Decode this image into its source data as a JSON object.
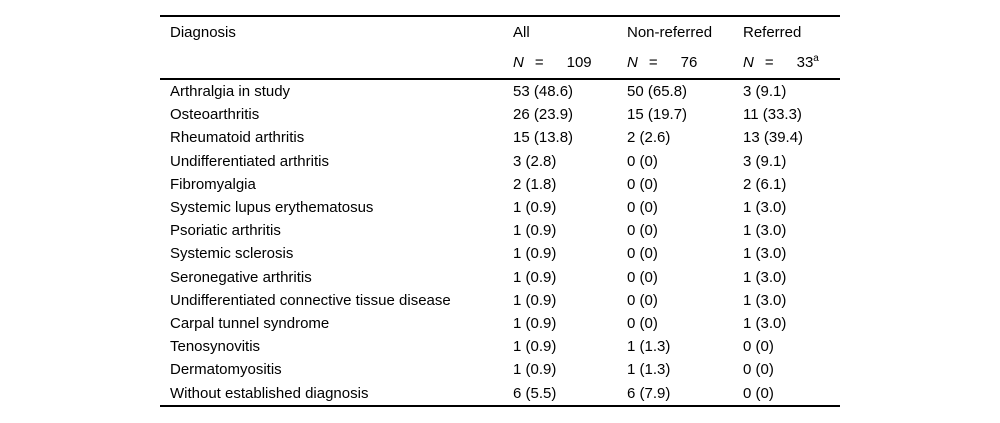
{
  "table": {
    "colors": {
      "text": "#000000",
      "background": "#ffffff",
      "rule": "#000000"
    },
    "columns": [
      {
        "label": "Diagnosis"
      },
      {
        "label": "All",
        "n": "N",
        "eq": "=",
        "count": "109",
        "sup": ""
      },
      {
        "label": "Non-referred",
        "n": "N",
        "eq": "=",
        "count": "76",
        "sup": ""
      },
      {
        "label": "Referred",
        "n": "N",
        "eq": "=",
        "count": "33",
        "sup": "a"
      }
    ],
    "rows": [
      {
        "diagnosis": "Arthralgia in study",
        "all": "53 (48.6)",
        "non_referred": "50 (65.8)",
        "referred": "3 (9.1)"
      },
      {
        "diagnosis": "Osteoarthritis",
        "all": "26 (23.9)",
        "non_referred": "15 (19.7)",
        "referred": "11 (33.3)"
      },
      {
        "diagnosis": "Rheumatoid arthritis",
        "all": "15 (13.8)",
        "non_referred": "2 (2.6)",
        "referred": "13 (39.4)"
      },
      {
        "diagnosis": "Undifferentiated arthritis",
        "all": "3 (2.8)",
        "non_referred": "0 (0)",
        "referred": "3 (9.1)"
      },
      {
        "diagnosis": "Fibromyalgia",
        "all": "2 (1.8)",
        "non_referred": "0 (0)",
        "referred": "2 (6.1)"
      },
      {
        "diagnosis": "Systemic lupus erythematosus",
        "all": "1 (0.9)",
        "non_referred": "0 (0)",
        "referred": "1 (3.0)"
      },
      {
        "diagnosis": "Psoriatic arthritis",
        "all": "1 (0.9)",
        "non_referred": "0 (0)",
        "referred": "1 (3.0)"
      },
      {
        "diagnosis": "Systemic sclerosis",
        "all": "1 (0.9)",
        "non_referred": "0 (0)",
        "referred": "1 (3.0)"
      },
      {
        "diagnosis": "Seronegative arthritis",
        "all": "1 (0.9)",
        "non_referred": "0 (0)",
        "referred": "1 (3.0)"
      },
      {
        "diagnosis": "Undifferentiated connective tissue disease",
        "all": "1 (0.9)",
        "non_referred": "0 (0)",
        "referred": "1 (3.0)"
      },
      {
        "diagnosis": "Carpal tunnel syndrome",
        "all": "1 (0.9)",
        "non_referred": "0 (0)",
        "referred": "1 (3.0)"
      },
      {
        "diagnosis": "Tenosynovitis",
        "all": "1 (0.9)",
        "non_referred": "1 (1.3)",
        "referred": "0 (0)"
      },
      {
        "diagnosis": "Dermatomyositis",
        "all": "1 (0.9)",
        "non_referred": "1 (1.3)",
        "referred": "0 (0)"
      },
      {
        "diagnosis": "Without established diagnosis",
        "all": "6 (5.5)",
        "non_referred": "6 (7.9)",
        "referred": "0 (0)"
      }
    ]
  }
}
